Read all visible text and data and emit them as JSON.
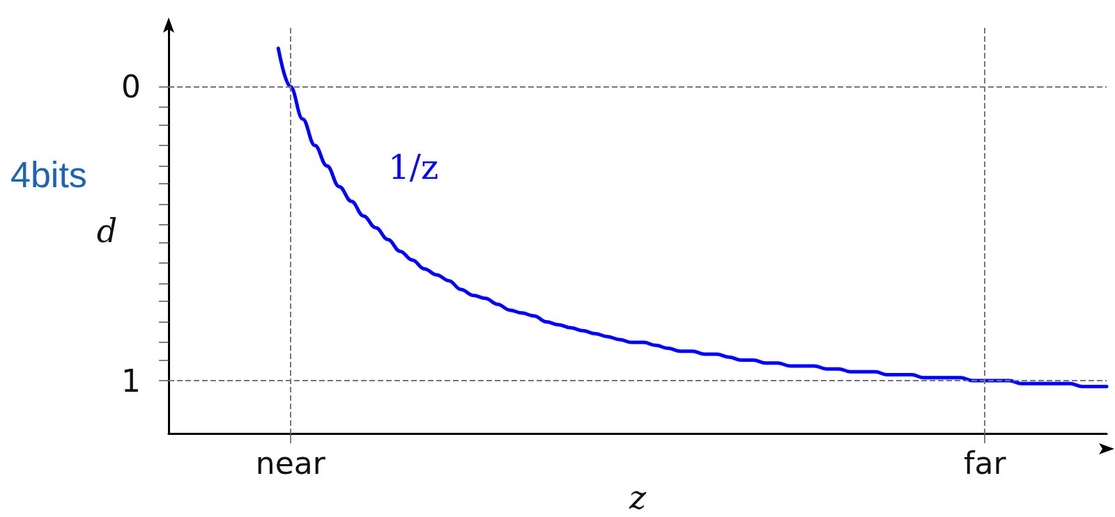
{
  "chart_data": {
    "type": "line",
    "xlabel": "z",
    "ylabel": "d",
    "annotations": [
      "4bits"
    ],
    "categories": [
      null,
      null,
      null,
      null,
      null,
      null,
      null,
      null,
      null,
      null,
      "near",
      null,
      null,
      null,
      null,
      null,
      null,
      null,
      null,
      null,
      null,
      null,
      null,
      null,
      null,
      null,
      null,
      null,
      null,
      null,
      null,
      null,
      null,
      null,
      null,
      null,
      null,
      null,
      null,
      null,
      null,
      null,
      null,
      null,
      null,
      null,
      null,
      null,
      null,
      null,
      null,
      null,
      null,
      null,
      null,
      null,
      null,
      null,
      null,
      null,
      null,
      null,
      null,
      null,
      null,
      null,
      null,
      "far",
      null,
      null,
      null,
      null,
      null,
      null,
      null,
      null,
      null,
      null
    ],
    "series": [
      {
        "name": "1/z",
        "color": "#0000ff",
        "values": [
          null,
          null,
          null,
          null,
          null,
          null,
          null,
          null,
          null,
          -0.13,
          0,
          0.11,
          0.2,
          0.27,
          0.34,
          0.39,
          0.44,
          0.48,
          0.52,
          0.56,
          0.59,
          0.62,
          0.64,
          0.66,
          0.69,
          0.71,
          0.72,
          0.74,
          0.76,
          0.77,
          0.78,
          0.8,
          0.81,
          0.82,
          0.83,
          0.84,
          0.85,
          0.86,
          0.87,
          0.87,
          0.88,
          0.89,
          0.9,
          0.9,
          0.91,
          0.91,
          0.92,
          0.93,
          0.93,
          0.94,
          0.94,
          0.95,
          0.95,
          0.95,
          0.96,
          0.96,
          0.97,
          0.97,
          0.97,
          0.98,
          0.98,
          0.98,
          0.99,
          0.99,
          0.99,
          0.99,
          1,
          1,
          1,
          1,
          1.01,
          1.01,
          1.01,
          1.01,
          1.01,
          1.02,
          1.02,
          1.02
        ]
      }
    ],
    "ylim": [
      1.18,
      -0.2
    ],
    "yticks": [
      0,
      {
        "value": 0.07,
        "label": null
      },
      {
        "value": 0.13,
        "label": null
      },
      {
        "value": 0.2,
        "label": null
      },
      {
        "value": 0.27,
        "label": null
      },
      {
        "value": 0.33,
        "label": null
      },
      {
        "value": 0.4,
        "label": null
      },
      {
        "value": 0.47,
        "label": null
      },
      {
        "value": 0.53,
        "label": null
      },
      {
        "value": 0.6,
        "label": null
      },
      {
        "value": 0.67,
        "label": null
      },
      {
        "value": 0.73,
        "label": null
      },
      {
        "value": 0.8,
        "label": null
      },
      {
        "value": 0.87,
        "label": null
      },
      {
        "value": 0.93,
        "label": null
      },
      1
    ],
    "ref_lines": [
      {
        "axis": "y",
        "value": 0
      },
      {
        "axis": "y",
        "value": 1
      },
      {
        "axis": "x",
        "value": "near"
      },
      {
        "axis": "x",
        "value": "far"
      }
    ],
    "grid": false,
    "legend": false,
    "marker": "none",
    "line_style": "solid"
  }
}
